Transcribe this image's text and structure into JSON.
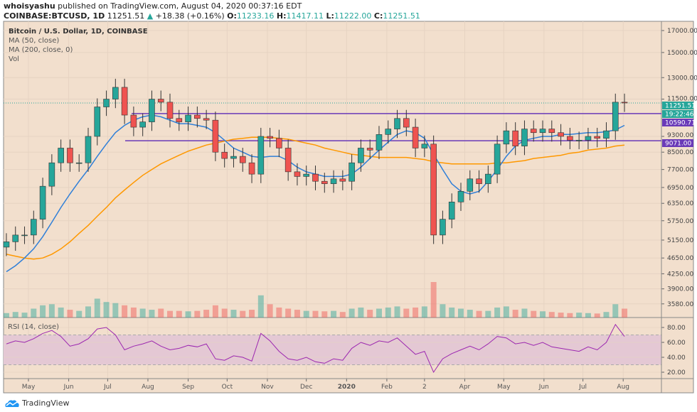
{
  "header": {
    "author": "whoisyashu",
    "published": "published on TradingView.com, August 04, 2020 00:37:16 EDT",
    "symbol": "COINBASE:BTCUSD, 1D",
    "last": "11251.51",
    "change": "+18.38 (+0.16%)",
    "open_label": "O:",
    "open": "11233.16",
    "high_label": "H:",
    "high": "11417.11",
    "low_label": "L:",
    "low": "11222.00",
    "close_label": "C:",
    "close": "11251.51"
  },
  "legend": {
    "title": "Bitcoin / U.S. Dollar, 1D, COINBASE",
    "ma50": "MA (50, close)",
    "ma200": "MA (200, close, 0)",
    "vol": "Vol",
    "rsi": "RSI (14, close)"
  },
  "price_labels": {
    "last": "11251.51",
    "countdown": "19:22:46",
    "line_upper": "10590.71",
    "line_lower": "9071.00"
  },
  "branding": "TradingView",
  "colors": {
    "background": "#f2dfcd",
    "up": "#26a69a",
    "down": "#ef5350",
    "ma50": "#2f7fd8",
    "ma200": "#ff9800",
    "hline": "#6a3ab8",
    "rsi": "#9c27b0",
    "rsi_band": "#e4c8d4"
  },
  "chart_data": {
    "type": "candlestick",
    "scale": "log",
    "grid": true,
    "ylim": [
      3400,
      18000
    ],
    "price_ticks": [
      17000,
      15000,
      13000,
      11500,
      9300,
      8500,
      7700,
      6950,
      6350,
      5750,
      5150,
      4650,
      4250,
      3900,
      3580
    ],
    "x_ticks": [
      {
        "date": "2019-05-01",
        "label": "May"
      },
      {
        "date": "2019-06-01",
        "label": "Jun"
      },
      {
        "date": "2019-07-01",
        "label": "Jul"
      },
      {
        "date": "2019-08-01",
        "label": "Aug"
      },
      {
        "date": "2019-09-01",
        "label": "Sep"
      },
      {
        "date": "2019-10-01",
        "label": "Oct"
      },
      {
        "date": "2019-11-01",
        "label": "Nov"
      },
      {
        "date": "2019-12-01",
        "label": "Dec"
      },
      {
        "date": "2020-01-01",
        "label": "2020"
      },
      {
        "date": "2020-02-01",
        "label": "Feb"
      },
      {
        "date": "2020-03-01",
        "label": "2"
      },
      {
        "date": "2020-04-01",
        "label": "Apr"
      },
      {
        "date": "2020-05-01",
        "label": "May"
      },
      {
        "date": "2020-06-01",
        "label": "Jun"
      },
      {
        "date": "2020-07-01",
        "label": "Jul"
      },
      {
        "date": "2020-08-01",
        "label": "Aug"
      }
    ],
    "start_date": "2019-04-14",
    "interval_days": 7,
    "closes": [
      5100,
      5300,
      5300,
      5800,
      7000,
      8000,
      8700,
      8000,
      8000,
      9300,
      11000,
      11500,
      12300,
      10500,
      9800,
      10100,
      11500,
      11300,
      10300,
      10100,
      10500,
      10300,
      10200,
      8500,
      8200,
      8300,
      8000,
      7500,
      9300,
      9200,
      8700,
      7600,
      7400,
      7500,
      7200,
      7100,
      7300,
      7200,
      8000,
      8700,
      8600,
      9400,
      9700,
      10300,
      9800,
      8700,
      8900,
      5300,
      5800,
      6400,
      6800,
      7300,
      7100,
      7500,
      8900,
      9600,
      8800,
      9700,
      9500,
      9700,
      9500,
      9300,
      9100,
      9100,
      9300,
      9200,
      9600,
      11300,
      11251.51
    ],
    "ma50": [
      4300,
      4450,
      4650,
      4900,
      5250,
      5700,
      6200,
      6700,
      7200,
      7700,
      8300,
      8900,
      9500,
      9900,
      10200,
      10400,
      10500,
      10400,
      10200,
      10000,
      10000,
      9900,
      9800,
      9500,
      9100,
      8700,
      8500,
      8300,
      8250,
      8300,
      8300,
      8100,
      7800,
      7600,
      7500,
      7400,
      7400,
      7400,
      7500,
      7800,
      8200,
      8600,
      9000,
      9400,
      9600,
      9500,
      9200,
      8400,
      7700,
      7100,
      6800,
      6700,
      6800,
      7200,
      7700,
      8300,
      8800,
      9100,
      9200,
      9300,
      9300,
      9400,
      9400,
      9450,
      9500,
      9500,
      9550,
      9650,
      9900
    ],
    "ma200": [
      4750,
      4700,
      4650,
      4620,
      4650,
      4750,
      4900,
      5100,
      5350,
      5600,
      5900,
      6200,
      6550,
      6850,
      7150,
      7450,
      7700,
      7950,
      8150,
      8350,
      8550,
      8700,
      8850,
      8950,
      9050,
      9150,
      9200,
      9250,
      9250,
      9250,
      9200,
      9150,
      9050,
      8950,
      8850,
      8700,
      8600,
      8500,
      8400,
      8350,
      8300,
      8250,
      8250,
      8250,
      8250,
      8200,
      8150,
      8050,
      8000,
      7950,
      7950,
      7950,
      7950,
      7950,
      8000,
      8000,
      8050,
      8100,
      8200,
      8250,
      8300,
      8350,
      8450,
      8500,
      8600,
      8650,
      8700,
      8800,
      8850
    ],
    "volume": [
      20,
      25,
      22,
      40,
      55,
      60,
      45,
      35,
      30,
      50,
      85,
      70,
      65,
      55,
      45,
      40,
      35,
      40,
      30,
      30,
      28,
      30,
      35,
      55,
      40,
      35,
      30,
      35,
      100,
      60,
      45,
      40,
      35,
      30,
      30,
      28,
      30,
      25,
      40,
      45,
      35,
      40,
      45,
      50,
      40,
      45,
      50,
      160,
      60,
      45,
      40,
      35,
      30,
      30,
      45,
      50,
      35,
      40,
      30,
      28,
      25,
      22,
      20,
      22,
      20,
      18,
      25,
      60,
      40
    ],
    "rsi": [
      58,
      62,
      60,
      65,
      72,
      76,
      68,
      55,
      58,
      65,
      78,
      80,
      70,
      50,
      55,
      58,
      62,
      55,
      50,
      52,
      56,
      54,
      58,
      38,
      36,
      42,
      40,
      35,
      72,
      62,
      48,
      38,
      36,
      40,
      34,
      32,
      38,
      36,
      52,
      60,
      56,
      62,
      60,
      66,
      55,
      44,
      48,
      20,
      38,
      45,
      50,
      55,
      50,
      58,
      68,
      66,
      58,
      60,
      56,
      60,
      54,
      52,
      50,
      48,
      54,
      50,
      60,
      84,
      68
    ],
    "rsi_ylim": [
      10,
      90
    ],
    "rsi_ticks": [
      80,
      60,
      40,
      20
    ],
    "rsi_band": [
      30,
      70
    ],
    "hlines": [
      10590.71,
      9071.0
    ],
    "last_price": 11251.51
  }
}
